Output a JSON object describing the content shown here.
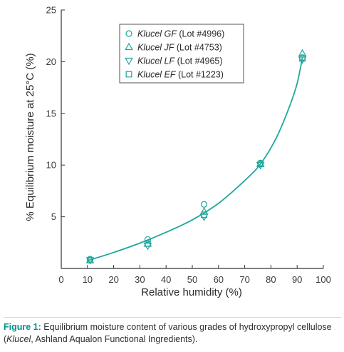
{
  "chart_data": {
    "type": "scatter",
    "xlabel": "Relative humidity (%)",
    "ylabel": "% Equilibrium moisture at 25°C (%)",
    "xlim": [
      0,
      100
    ],
    "ylim": [
      0,
      25
    ],
    "x_ticks": [
      "0",
      "10",
      "20",
      "30",
      "40",
      "50",
      "60",
      "70",
      "80",
      "90",
      "100"
    ],
    "y_ticks": [
      "5",
      "10",
      "15",
      "20",
      "25"
    ],
    "curve_color": "#1fa79c",
    "marker_color": "#1fa79c",
    "legend_position": "top-center",
    "series": [
      {
        "name_italic": "Klucel GF",
        "name_rest": " (Lot #4996)",
        "marker": "circle",
        "points": [
          [
            11,
            0.9
          ],
          [
            33,
            2.8
          ],
          [
            54.5,
            6.2
          ],
          [
            76,
            10.2
          ],
          [
            92,
            20.4
          ]
        ]
      },
      {
        "name_italic": "Klucel JF",
        "name_rest": " (Lot #4753)",
        "marker": "triangle-up",
        "points": [
          [
            11,
            0.8
          ],
          [
            33,
            2.4
          ],
          [
            54.5,
            5.5
          ],
          [
            76,
            10.1
          ],
          [
            92,
            20.8
          ]
        ]
      },
      {
        "name_italic": "Klucel LF",
        "name_rest": " (Lot #4965)",
        "marker": "triangle-down",
        "points": [
          [
            11,
            0.8
          ],
          [
            33,
            2.2
          ],
          [
            54.5,
            5.0
          ],
          [
            76,
            10.0
          ],
          [
            92,
            20.2
          ]
        ]
      },
      {
        "name_italic": "Klucel EF",
        "name_rest": " (Lot #1223)",
        "marker": "square",
        "points": [
          [
            11,
            0.8
          ],
          [
            33,
            2.4
          ],
          [
            54.5,
            5.2
          ],
          [
            76,
            10.1
          ],
          [
            92,
            20.3
          ]
        ]
      }
    ],
    "fit_curve": [
      [
        10,
        0.75
      ],
      [
        20,
        1.55
      ],
      [
        30,
        2.45
      ],
      [
        40,
        3.5
      ],
      [
        50,
        4.7
      ],
      [
        60,
        6.3
      ],
      [
        70,
        8.5
      ],
      [
        76,
        10.1
      ],
      [
        82,
        12.6
      ],
      [
        87,
        15.6
      ],
      [
        90,
        17.9
      ],
      [
        92,
        20.4
      ]
    ]
  },
  "caption": {
    "lead": "Figure 1:",
    "text_1": " Equilibrium moisture content of various grades of hydroxypropyl cellulose (",
    "brand": "Klucel",
    "text_2": ", Ashland Aqualon Functional Ingredients)."
  }
}
